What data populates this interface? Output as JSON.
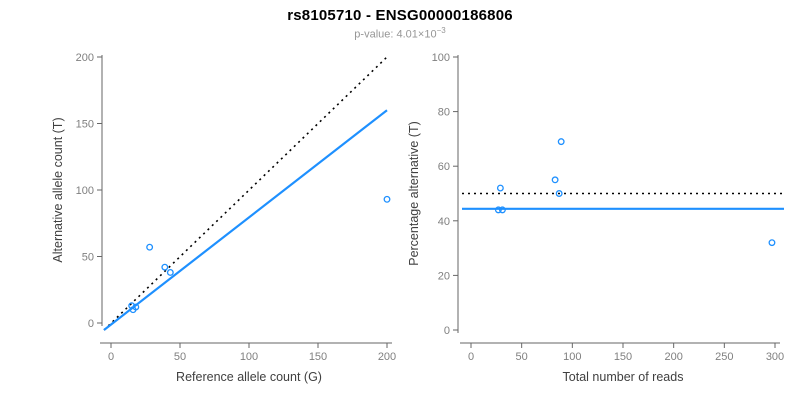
{
  "header": {
    "title": "rs8105710 - ENSG00000186806",
    "pvalue_text": "p-value: 4.01×10",
    "pvalue_exponent": "−3"
  },
  "colors": {
    "accent_blue": "#1E90FF",
    "null_line_black": "#000000",
    "axis_line": "#666666",
    "tick_label": "#7f7f7f",
    "axis_title": "#404040",
    "subtitle_gray": "#969696"
  },
  "chart_data": [
    {
      "type": "scatter",
      "name": "allele-counts-plot",
      "xlabel": "Reference allele count (G)",
      "ylabel": "Alternative allele count (T)",
      "xlim": [
        0,
        200
      ],
      "ylim": [
        0,
        200
      ],
      "xticks": [
        0,
        50,
        100,
        150,
        200
      ],
      "yticks": [
        0,
        50,
        100,
        150,
        200
      ],
      "grid": false,
      "points": [
        [
          15,
          13
        ],
        [
          16,
          10
        ],
        [
          18,
          12
        ],
        [
          28,
          57
        ],
        [
          39,
          42
        ],
        [
          43,
          38
        ],
        [
          200,
          93
        ]
      ],
      "lines": [
        {
          "name": "identity-null-line",
          "style": "dotted",
          "color_key": "null_line_black",
          "from": [
            0,
            0
          ],
          "to": [
            200,
            200
          ]
        },
        {
          "name": "fitted-slope-line",
          "style": "solid",
          "color_key": "accent_blue",
          "from": [
            0,
            0
          ],
          "to": [
            200,
            160
          ]
        }
      ]
    },
    {
      "type": "scatter",
      "name": "percentage-vs-coverage-plot",
      "xlabel": "Total number of reads",
      "ylabel": "Percentage alternative (T)",
      "xlim": [
        0,
        300
      ],
      "ylim": [
        0,
        100
      ],
      "xticks": [
        0,
        50,
        100,
        150,
        200,
        250,
        300
      ],
      "yticks": [
        0,
        20,
        40,
        60,
        80,
        100
      ],
      "grid": false,
      "points": [
        [
          27,
          44
        ],
        [
          29,
          52
        ],
        [
          31,
          44
        ],
        [
          83,
          55
        ],
        [
          87,
          50
        ],
        [
          89,
          69
        ],
        [
          297,
          32
        ]
      ],
      "lines": [
        {
          "name": "null-50pct-line",
          "style": "dotted",
          "color_key": "null_line_black",
          "from": [
            0,
            50
          ],
          "to": [
            300,
            50
          ]
        },
        {
          "name": "fitted-pct-line",
          "style": "solid",
          "color_key": "accent_blue",
          "from": [
            0,
            44.4
          ],
          "to": [
            300,
            44.4
          ]
        }
      ]
    }
  ]
}
